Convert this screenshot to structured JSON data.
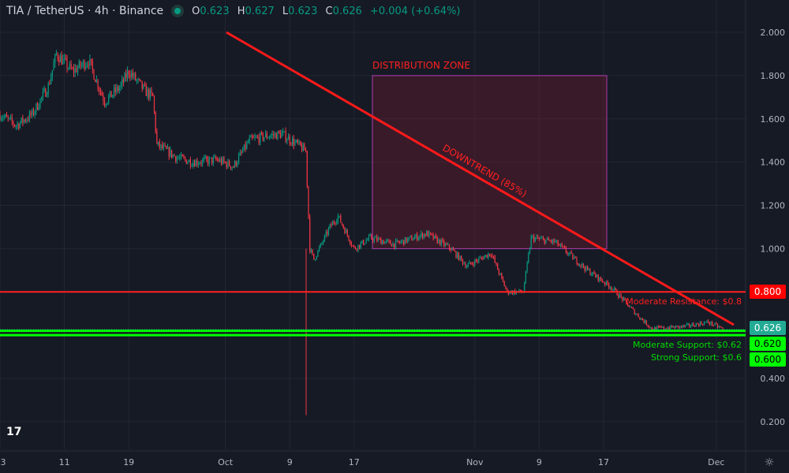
{
  "header": {
    "symbol": "TIA / TetherUS · 4h · Binance",
    "o_label": "O",
    "o": "0.623",
    "h_label": "H",
    "h": "0.627",
    "l_label": "L",
    "l": "0.623",
    "c_label": "C",
    "c": "0.626",
    "change": "+0.004 (+0.64%)"
  },
  "chart_data": {
    "type": "candlestick",
    "y_ticks": [
      "2.000",
      "1.800",
      "1.600",
      "1.400",
      "1.200",
      "1.000",
      "0.800",
      "0.600",
      "0.400",
      "0.200"
    ],
    "ylim": [
      0.2,
      2.0
    ],
    "x_ticks": [
      {
        "label": "3",
        "day": 0
      },
      {
        "label": "11",
        "day": 8
      },
      {
        "label": "19",
        "day": 16
      },
      {
        "label": "Oct",
        "day": 28
      },
      {
        "label": "9",
        "day": 36
      },
      {
        "label": "17",
        "day": 44
      },
      {
        "label": "Nov",
        "day": 59
      },
      {
        "label": "9",
        "day": 67
      },
      {
        "label": "17",
        "day": 75
      },
      {
        "label": "Dec",
        "day": 89
      }
    ],
    "price_path": [
      [
        0,
        1.62
      ],
      [
        2,
        1.57
      ],
      [
        4,
        1.62
      ],
      [
        6,
        1.75
      ],
      [
        7,
        1.9
      ],
      [
        9,
        1.82
      ],
      [
        11,
        1.87
      ],
      [
        13,
        1.68
      ],
      [
        15,
        1.75
      ],
      [
        16,
        1.82
      ],
      [
        18,
        1.73
      ],
      [
        19,
        1.7
      ],
      [
        19.5,
        1.48
      ],
      [
        22,
        1.42
      ],
      [
        24,
        1.4
      ],
      [
        27,
        1.41
      ],
      [
        29,
        1.38
      ],
      [
        31,
        1.5
      ],
      [
        33,
        1.52
      ],
      [
        35,
        1.53
      ],
      [
        37,
        1.48
      ],
      [
        38,
        1.45
      ],
      [
        38.5,
        1.0
      ],
      [
        39,
        0.95
      ],
      [
        41,
        1.1
      ],
      [
        42,
        1.15
      ],
      [
        44,
        1.0
      ],
      [
        46,
        1.05
      ],
      [
        49,
        1.02
      ],
      [
        53,
        1.07
      ],
      [
        56,
        1.0
      ],
      [
        58,
        0.92
      ],
      [
        61,
        0.98
      ],
      [
        63,
        0.8
      ],
      [
        65,
        0.8
      ],
      [
        66,
        1.05
      ],
      [
        69,
        1.03
      ],
      [
        73,
        0.9
      ],
      [
        76,
        0.82
      ],
      [
        79,
        0.7
      ],
      [
        81,
        0.63
      ],
      [
        85,
        0.64
      ],
      [
        88,
        0.66
      ],
      [
        90,
        0.626
      ]
    ],
    "spike_low": 0.23,
    "annotations": {
      "zone_label": "DISTRIBUTION ZONE",
      "zone_top": 1.8,
      "zone_bottom": 1.0,
      "trend_label": "DOWNTREND (85%)",
      "resistance_label": "Moderate Resistance: $0.8",
      "moderate_support_label": "Moderate Support: $0.62",
      "strong_support_label": "Strong Support: $0.6"
    },
    "levels": {
      "resistance": "0.800",
      "last": "0.626",
      "moderate_support": "0.620",
      "strong_support": "0.600"
    },
    "colors": {
      "up": "#089981",
      "down": "#f23645",
      "trend": "#ff1a1a",
      "support": "#00ff00"
    }
  }
}
